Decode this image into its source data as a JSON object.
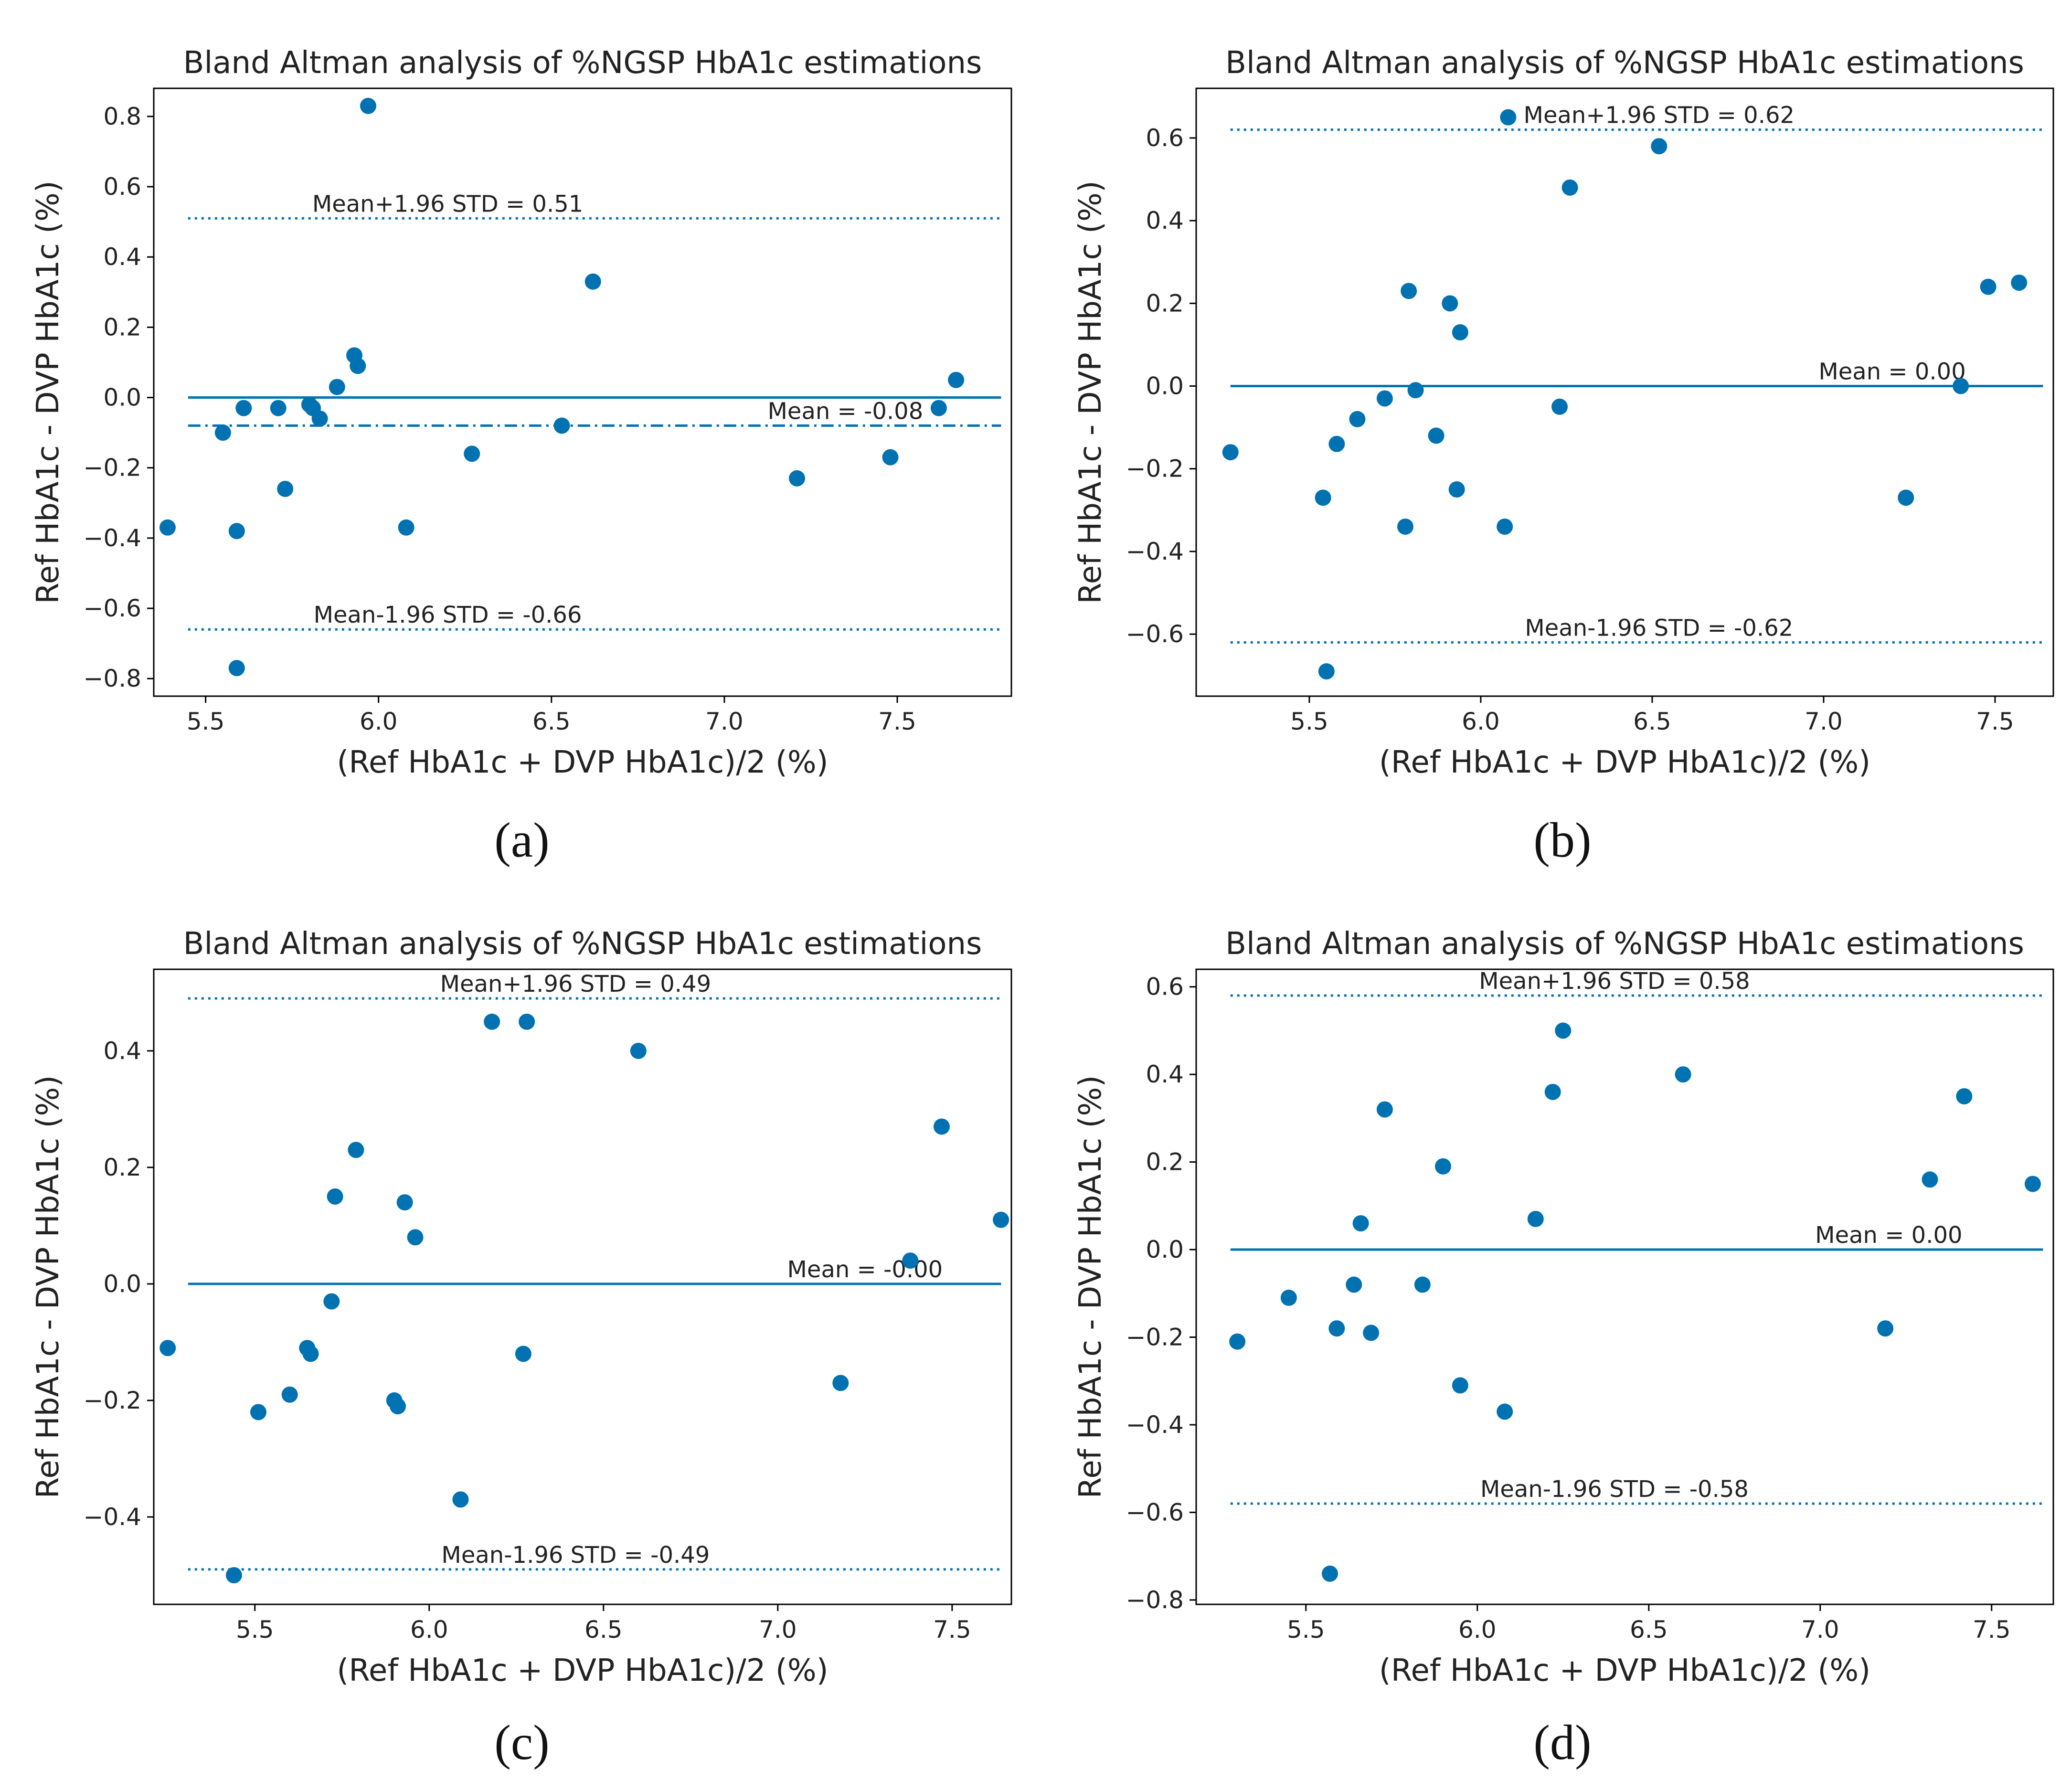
{
  "colors": {
    "marker": "#0072b2",
    "line": "#0072b2",
    "axis": "#000000",
    "text": "#222222"
  },
  "panels": [
    {
      "caption": "(a)",
      "chart_data": {
        "type": "scatter",
        "title": "Bland Altman analysis of %NGSP HbA1c estimations",
        "xlabel": "(Ref HbA1c + DVP HbA1c)/2 (%)",
        "ylabel": "Ref HbA1c - DVP HbA1c (%)",
        "xlim": [
          5.35,
          7.83
        ],
        "ylim": [
          -0.85,
          0.88
        ],
        "xticks": [
          5.5,
          6.0,
          6.5,
          7.0,
          7.5
        ],
        "xtick_labels": [
          "5.5",
          "6.0",
          "6.5",
          "7.0",
          "7.5"
        ],
        "yticks": [
          -0.8,
          -0.6,
          -0.4,
          -0.2,
          0.0,
          0.2,
          0.4,
          0.6,
          0.8
        ],
        "ytick_labels": [
          "−0.8",
          "−0.6",
          "−0.4",
          "−0.2",
          "0.0",
          "0.2",
          "0.4",
          "0.6",
          "0.8"
        ],
        "points": [
          [
            5.39,
            -0.37
          ],
          [
            5.55,
            -0.1
          ],
          [
            5.59,
            -0.38
          ],
          [
            5.59,
            -0.77
          ],
          [
            5.61,
            -0.03
          ],
          [
            5.71,
            -0.03
          ],
          [
            5.73,
            -0.26
          ],
          [
            5.8,
            -0.02
          ],
          [
            5.81,
            -0.03
          ],
          [
            5.83,
            -0.06
          ],
          [
            5.88,
            0.03
          ],
          [
            5.93,
            0.12
          ],
          [
            5.94,
            0.09
          ],
          [
            5.97,
            0.83
          ],
          [
            6.08,
            -0.37
          ],
          [
            6.27,
            -0.16
          ],
          [
            6.53,
            -0.08
          ],
          [
            6.62,
            0.33
          ],
          [
            7.21,
            -0.23
          ],
          [
            7.48,
            -0.17
          ],
          [
            7.62,
            -0.03
          ],
          [
            7.67,
            0.05
          ]
        ],
        "zero_line": 0.0,
        "mean": -0.08,
        "mean_style": "dashdot",
        "upper_loa": 0.51,
        "lower_loa": -0.66,
        "labels": {
          "upper": "Mean+1.96 STD = 0.51",
          "mean": "Mean = -0.08",
          "lower": "Mean-1.96 STD = -0.66"
        }
      }
    },
    {
      "caption": "(b)",
      "chart_data": {
        "type": "scatter",
        "title": "Bland Altman analysis of %NGSP HbA1c estimations",
        "xlabel": "(Ref HbA1c + DVP HbA1c)/2 (%)",
        "ylabel": "Ref HbA1c - DVP HbA1c (%)",
        "xlim": [
          5.17,
          7.67
        ],
        "ylim": [
          -0.75,
          0.72
        ],
        "xticks": [
          5.5,
          6.0,
          6.5,
          7.0,
          7.5
        ],
        "xtick_labels": [
          "5.5",
          "6.0",
          "6.5",
          "7.0",
          "7.5"
        ],
        "yticks": [
          -0.6,
          -0.4,
          -0.2,
          0.0,
          0.2,
          0.4,
          0.6
        ],
        "ytick_labels": [
          "−0.6",
          "−0.4",
          "−0.2",
          "0.0",
          "0.2",
          "0.4",
          "0.6"
        ],
        "points": [
          [
            5.27,
            -0.16
          ],
          [
            5.54,
            -0.27
          ],
          [
            5.55,
            -0.69
          ],
          [
            5.58,
            -0.14
          ],
          [
            5.64,
            -0.08
          ],
          [
            5.72,
            -0.03
          ],
          [
            5.78,
            -0.34
          ],
          [
            5.79,
            0.23
          ],
          [
            5.81,
            -0.01
          ],
          [
            5.87,
            -0.12
          ],
          [
            5.91,
            0.2
          ],
          [
            5.93,
            -0.25
          ],
          [
            5.94,
            0.13
          ],
          [
            6.07,
            -0.34
          ],
          [
            6.08,
            0.65
          ],
          [
            6.23,
            -0.05
          ],
          [
            6.26,
            0.48
          ],
          [
            6.52,
            0.58
          ],
          [
            7.24,
            -0.27
          ],
          [
            7.4,
            0.0
          ],
          [
            7.48,
            0.24
          ],
          [
            7.57,
            0.25
          ]
        ],
        "zero_line": 0.0,
        "mean": 0.0,
        "mean_style": "solid",
        "upper_loa": 0.62,
        "lower_loa": -0.62,
        "labels": {
          "upper": "Mean+1.96 STD = 0.62",
          "mean": "Mean = 0.00",
          "lower": "Mean-1.96 STD = -0.62"
        }
      }
    },
    {
      "caption": "(c)",
      "chart_data": {
        "type": "scatter",
        "title": "Bland Altman analysis of %NGSP HbA1c estimations",
        "xlabel": "(Ref HbA1c + DVP HbA1c)/2 (%)",
        "ylabel": "Ref HbA1c - DVP HbA1c (%)",
        "xlim": [
          5.21,
          7.67
        ],
        "ylim": [
          -0.55,
          0.54
        ],
        "xticks": [
          5.5,
          6.0,
          6.5,
          7.0,
          7.5
        ],
        "xtick_labels": [
          "5.5",
          "6.0",
          "6.5",
          "7.0",
          "7.5"
        ],
        "yticks": [
          -0.4,
          -0.2,
          0.0,
          0.2,
          0.4
        ],
        "ytick_labels": [
          "−0.4",
          "−0.2",
          "0.0",
          "0.2",
          "0.4"
        ],
        "points": [
          [
            5.25,
            -0.11
          ],
          [
            5.44,
            -0.5
          ],
          [
            5.51,
            -0.22
          ],
          [
            5.6,
            -0.19
          ],
          [
            5.65,
            -0.11
          ],
          [
            5.66,
            -0.12
          ],
          [
            5.72,
            -0.03
          ],
          [
            5.73,
            0.15
          ],
          [
            5.79,
            0.23
          ],
          [
            5.9,
            -0.2
          ],
          [
            5.91,
            -0.21
          ],
          [
            5.93,
            0.14
          ],
          [
            5.96,
            0.08
          ],
          [
            6.09,
            -0.37
          ],
          [
            6.18,
            0.45
          ],
          [
            6.27,
            -0.12
          ],
          [
            6.28,
            0.45
          ],
          [
            6.6,
            0.4
          ],
          [
            7.18,
            -0.17
          ],
          [
            7.38,
            0.04
          ],
          [
            7.47,
            0.27
          ],
          [
            7.64,
            0.11
          ]
        ],
        "zero_line": 0.0,
        "mean": 0.0,
        "mean_style": "solid",
        "upper_loa": 0.49,
        "lower_loa": -0.49,
        "labels": {
          "upper": "Mean+1.96 STD = 0.49",
          "mean": "Mean = -0.00",
          "lower": "Mean-1.96 STD = -0.49"
        }
      }
    },
    {
      "caption": "(d)",
      "chart_data": {
        "type": "scatter",
        "title": "Bland Altman analysis of %NGSP HbA1c estimations",
        "xlabel": "(Ref HbA1c + DVP HbA1c)/2 (%)",
        "ylabel": "Ref HbA1c - DVP HbA1c (%)",
        "xlim": [
          5.18,
          7.68
        ],
        "ylim": [
          -0.81,
          0.64
        ],
        "xticks": [
          5.5,
          6.0,
          6.5,
          7.0,
          7.5
        ],
        "xtick_labels": [
          "5.5",
          "6.0",
          "6.5",
          "7.0",
          "7.5"
        ],
        "yticks": [
          -0.8,
          -0.6,
          -0.4,
          -0.2,
          0.0,
          0.2,
          0.4,
          0.6
        ],
        "ytick_labels": [
          "−0.8",
          "−0.6",
          "−0.4",
          "−0.2",
          "0.0",
          "0.2",
          "0.4",
          "0.6"
        ],
        "points": [
          [
            5.3,
            -0.21
          ],
          [
            5.45,
            -0.11
          ],
          [
            5.57,
            -0.74
          ],
          [
            5.59,
            -0.18
          ],
          [
            5.64,
            -0.08
          ],
          [
            5.66,
            0.06
          ],
          [
            5.69,
            -0.19
          ],
          [
            5.73,
            0.32
          ],
          [
            5.84,
            -0.08
          ],
          [
            5.9,
            0.19
          ],
          [
            5.95,
            -0.31
          ],
          [
            6.08,
            -0.37
          ],
          [
            6.17,
            0.07
          ],
          [
            6.22,
            0.36
          ],
          [
            6.25,
            0.5
          ],
          [
            6.6,
            0.4
          ],
          [
            7.19,
            -0.18
          ],
          [
            7.32,
            0.16
          ],
          [
            7.42,
            0.35
          ],
          [
            7.62,
            0.15
          ]
        ],
        "zero_line": 0.0,
        "mean": 0.0,
        "mean_style": "solid",
        "upper_loa": 0.58,
        "lower_loa": -0.58,
        "labels": {
          "upper": "Mean+1.96 STD = 0.58",
          "mean": "Mean = 0.00",
          "lower": "Mean-1.96 STD = -0.58"
        }
      }
    }
  ]
}
